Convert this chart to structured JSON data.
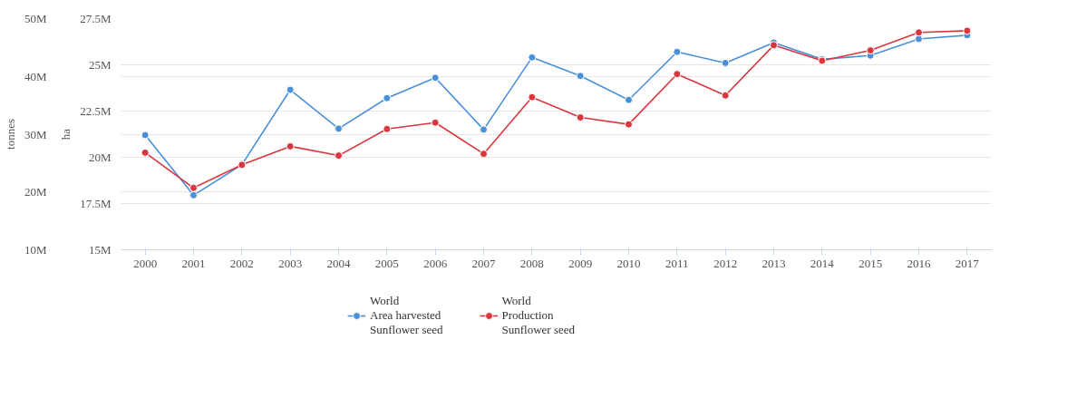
{
  "chart_data": {
    "type": "line",
    "categories": [
      "2000",
      "2001",
      "2002",
      "2003",
      "2004",
      "2005",
      "2006",
      "2007",
      "2008",
      "2009",
      "2010",
      "2011",
      "2012",
      "2013",
      "2014",
      "2015",
      "2016",
      "2017"
    ],
    "series": [
      {
        "name": "World\nArea harvested\nSunflower seed",
        "color": "#4a90d9",
        "axis": "y",
        "values": [
          21.2,
          17.95,
          19.6,
          23.65,
          21.55,
          23.2,
          24.3,
          21.5,
          25.4,
          24.4,
          23.1,
          25.7,
          25.1,
          26.2,
          25.3,
          25.5,
          26.4,
          26.6
        ]
      },
      {
        "name": "World\nProduction\nSunflower seed",
        "color": "#d9363e",
        "axis": "y2",
        "values": [
          26.8,
          20.7,
          24.7,
          27.9,
          26.3,
          30.9,
          32.0,
          26.6,
          36.4,
          32.9,
          31.7,
          40.4,
          36.7,
          45.4,
          42.7,
          44.5,
          47.6,
          47.9
        ]
      }
    ],
    "ylabel": "ha",
    "y2label": "tonnes",
    "ylim": [
      15,
      27.5
    ],
    "yticks": [
      {
        "value": 15,
        "label": "15M"
      },
      {
        "value": 17.5,
        "label": "17.5M"
      },
      {
        "value": 20,
        "label": "20M"
      },
      {
        "value": 22.5,
        "label": "22.5M"
      },
      {
        "value": 25,
        "label": "25M"
      },
      {
        "value": 27.5,
        "label": "27.5M"
      }
    ],
    "y2lim": [
      10,
      50
    ],
    "y2ticks": [
      {
        "value": 10,
        "label": "10M"
      },
      {
        "value": 20,
        "label": "20M"
      },
      {
        "value": 30,
        "label": "30M"
      },
      {
        "value": 40,
        "label": "40M"
      },
      {
        "value": 50,
        "label": "50M"
      }
    ],
    "grid": "y",
    "legend": "bottom",
    "marker": "circle",
    "line_style": "solid"
  }
}
